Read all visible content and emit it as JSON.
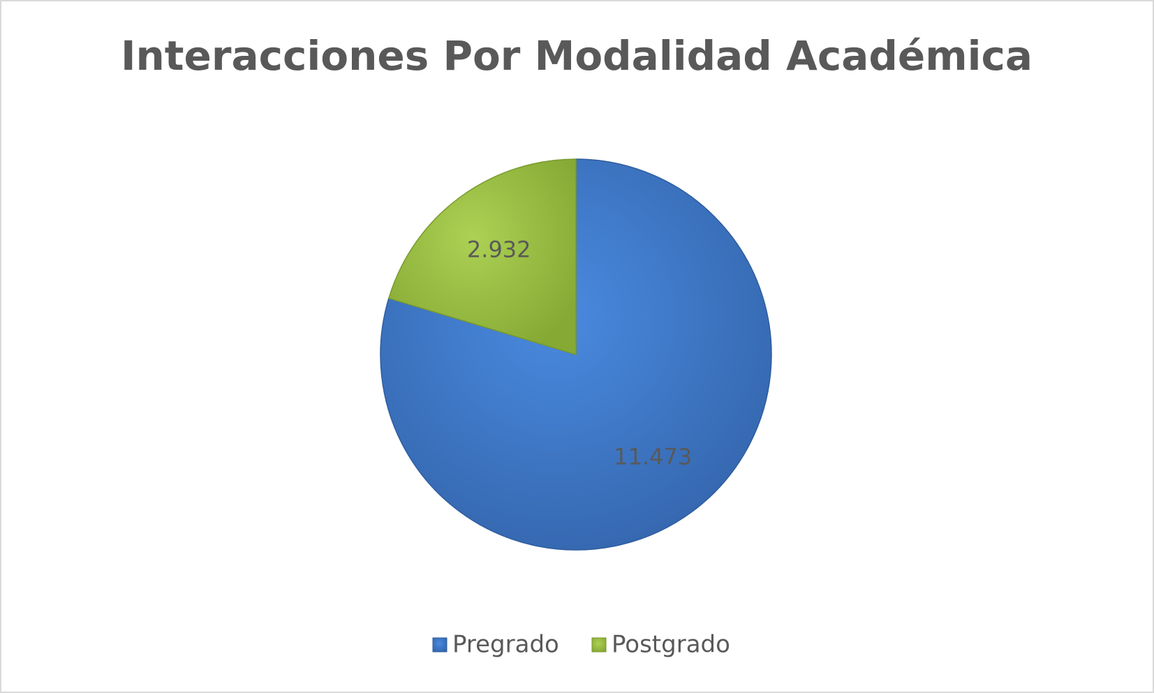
{
  "chart_data": {
    "type": "pie",
    "title": "Interacciones Por Modalidad Académica",
    "categories": [
      "Pregrado",
      "Postgrado"
    ],
    "values": [
      11473,
      2932
    ],
    "value_labels": [
      "11.473",
      "2.932"
    ],
    "colors": [
      "#3f7bcc",
      "#9bc23f"
    ],
    "legend": "bottom"
  }
}
